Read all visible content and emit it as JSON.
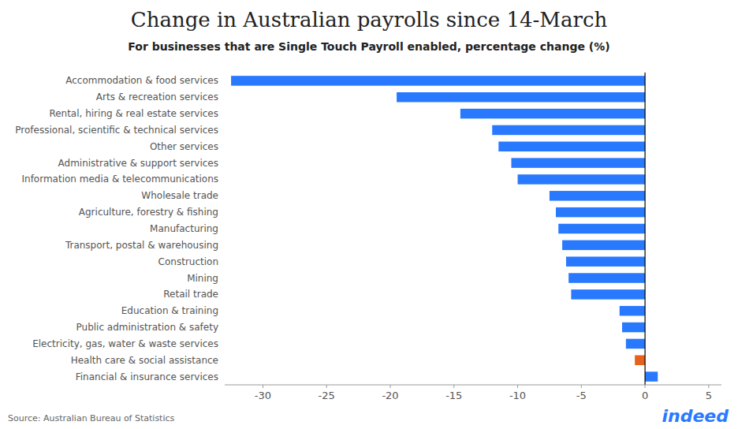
{
  "chart_data": {
    "type": "bar",
    "orientation": "horizontal",
    "title": "Change in Australian payrolls since 14-March",
    "subtitle": "For businesses that are Single Touch Payroll enabled, percentage change (%)",
    "source": "Source: Australian Bureau of Statistics",
    "annotations": [
      {
        "text": "indeed",
        "color": "#2979FF"
      }
    ],
    "categories": [
      "Accommodation & food services",
      "Arts & recreation services",
      "Rental, hiring & real estate services",
      "Professional, scientific & technical services",
      "Other services",
      "Administrative & support services",
      "Information media & telecommunications",
      "Wholesale trade",
      "Agriculture, forestry & fishing",
      "Manufacturing",
      "Transport, postal & warehousing",
      "Construction",
      "Mining",
      "Retail trade",
      "Education & training",
      "Public administration & safety",
      "Electricity, gas, water & waste services",
      "Health care & social assistance",
      "Financial & insurance services"
    ],
    "values": [
      -32.5,
      -19.5,
      -14.5,
      -12.0,
      -11.5,
      -10.5,
      -10.0,
      -7.5,
      -7.0,
      -6.8,
      -6.5,
      -6.2,
      -6.0,
      -5.8,
      -2.0,
      -1.8,
      -1.5,
      -0.8,
      1.0
    ],
    "colors": [
      "#2979FF",
      "#2979FF",
      "#2979FF",
      "#2979FF",
      "#2979FF",
      "#2979FF",
      "#2979FF",
      "#2979FF",
      "#2979FF",
      "#2979FF",
      "#2979FF",
      "#2979FF",
      "#2979FF",
      "#2979FF",
      "#2979FF",
      "#2979FF",
      "#2979FF",
      "#E8611A",
      "#2979FF"
    ],
    "xlim": [
      -33,
      6
    ],
    "xticks": [
      -30,
      -25,
      -20,
      -15,
      -10,
      -5,
      0,
      5
    ],
    "grid": false
  }
}
